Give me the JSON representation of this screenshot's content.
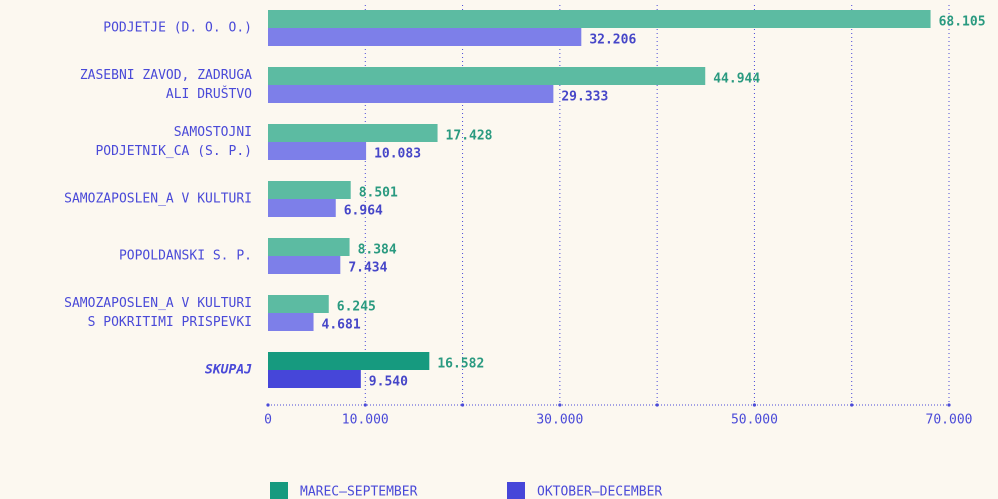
{
  "chart_data": {
    "type": "hbar",
    "categories": [
      [
        "PODJETJE (D. O. O.)"
      ],
      [
        "ZASEBNI ZAVOD, ZADRUGA",
        "ALI DRUŠTVO"
      ],
      [
        "SAMOSTOJNI",
        "PODJETNIK_CA (S. P.)"
      ],
      [
        "SAMOZAPOSLEN_A V KULTURI"
      ],
      [
        "POPOLDANSKI S. P."
      ],
      [
        "SAMOZAPOSLEN_A V KULTURI",
        "S POKRITIMI PRISPEVKI"
      ],
      [
        "SKUPAJ"
      ]
    ],
    "series": [
      {
        "name": "MAREC–SEPTEMBER",
        "color": "#169a7f",
        "bar_colors": [
          "#5cbba2",
          "#5cbba2",
          "#5cbba2",
          "#5cbba2",
          "#5cbba2",
          "#5cbba2",
          "#169a7f"
        ],
        "label_color": "#2a9a80",
        "values": [
          68105,
          44944,
          17428,
          8501,
          8384,
          6245,
          16582
        ],
        "value_labels": [
          "68.105",
          "44.944",
          "17.428",
          "8.501",
          "8.384",
          "6.245",
          "16.582"
        ]
      },
      {
        "name": "OKTOBER–DECEMBER",
        "color": "#4646d9",
        "bar_colors": [
          "#7d7fe9",
          "#7d7fe9",
          "#7d7fe9",
          "#7d7fe9",
          "#7d7fe9",
          "#7d7fe9",
          "#4646d9"
        ],
        "label_color": "#4646c8",
        "values": [
          32206,
          29333,
          10083,
          6964,
          7434,
          4681,
          9540
        ],
        "value_labels": [
          "32.206",
          "29.333",
          "10.083",
          "6.964",
          "7.434",
          "4.681",
          "9.540"
        ]
      }
    ],
    "emphasized_category": 6,
    "xlim": [
      0,
      70000
    ],
    "xticks": [
      0,
      {
        "value": 10000,
        "label": "10.000"
      },
      {
        "value": 30000,
        "label": "30.000"
      },
      {
        "value": 50000,
        "label": "50.000"
      },
      {
        "value": 70000,
        "label": "70.000"
      }
    ],
    "xminor": [
      20000,
      40000,
      60000
    ],
    "grid": true,
    "legend": "bottom"
  }
}
